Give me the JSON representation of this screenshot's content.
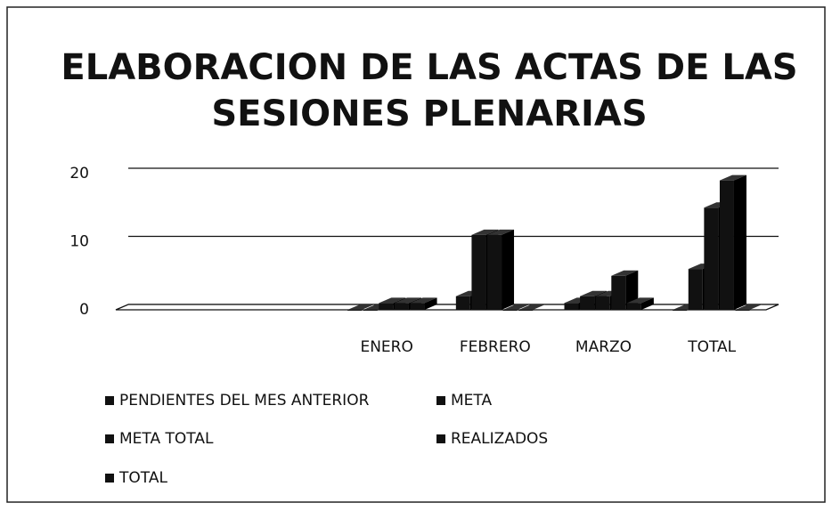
{
  "chart_data": {
    "type": "bar3d",
    "title": [
      "ELABORACION DE LAS ACTAS DE LAS",
      "SESIONES PLENARIAS"
    ],
    "categories": [
      null,
      null,
      "ENERO",
      "FEBRERO",
      "MARZO",
      "TOTAL"
    ],
    "series": [
      {
        "name": "PENDIENTES DEL MES ANTERIOR",
        "color": "#111111",
        "values": [
          null,
          null,
          0,
          2,
          1,
          0
        ]
      },
      {
        "name": "META",
        "color": "#111111",
        "values": [
          null,
          null,
          0,
          11,
          2,
          6
        ]
      },
      {
        "name": "META TOTAL",
        "color": "#111111",
        "values": [
          null,
          null,
          1,
          11,
          2,
          15
        ]
      },
      {
        "name": "REALIZADOS",
        "color": "#111111",
        "values": [
          null,
          null,
          1,
          0,
          5,
          19
        ]
      },
      {
        "name": "TOTAL",
        "color": "#111111",
        "values": [
          null,
          null,
          1,
          0,
          1,
          0
        ]
      }
    ],
    "ylim": [
      0,
      20
    ],
    "yticks": [
      0,
      10,
      20
    ],
    "grid": true
  }
}
